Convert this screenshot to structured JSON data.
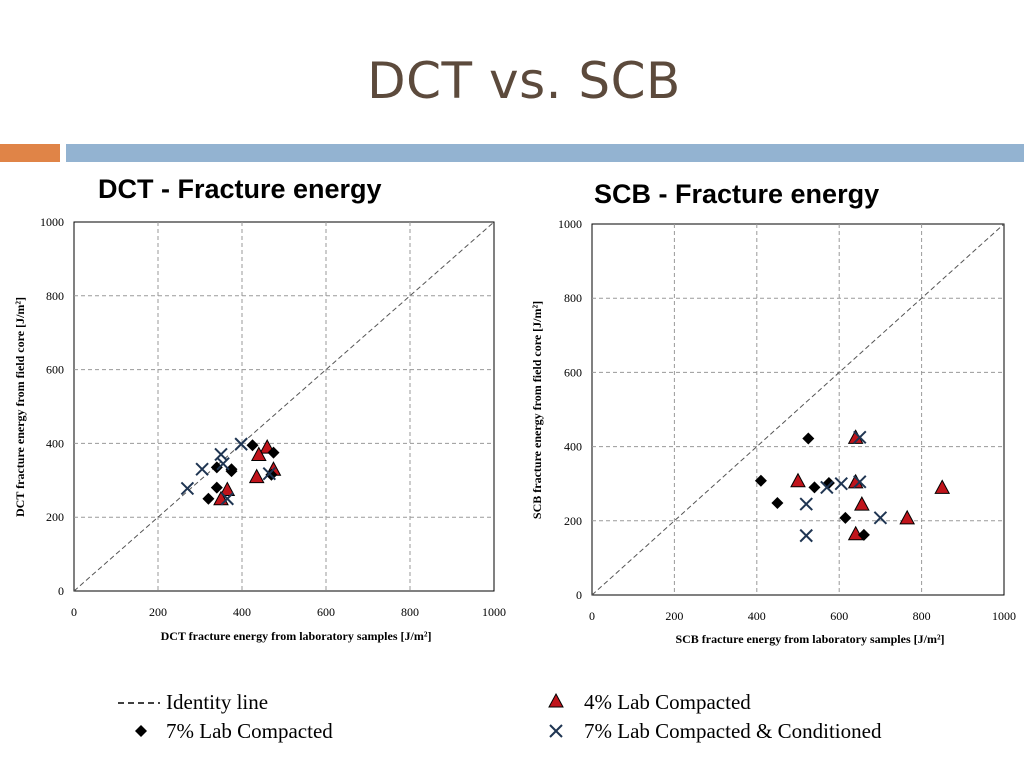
{
  "slide": {
    "title": "DCT vs. SCB",
    "accent_colors": {
      "left_bar": "#e08447",
      "right_bar": "#93b3d1",
      "title": "#5c4a3c"
    }
  },
  "legend": {
    "identity": "Identity line",
    "lab4": "4% Lab Compacted",
    "lab7": "7% Lab Compacted",
    "lab7c": "7% Lab Compacted & Conditioned"
  },
  "chart_data": [
    {
      "type": "scatter",
      "title": "DCT  -  Fracture energy",
      "xlabel": "DCT fracture energy from laboratory samples [J/m²]",
      "ylabel": "DCT fracture energy  from field core [J/m²]",
      "xlim": [
        0,
        1000
      ],
      "ylim": [
        0,
        1000
      ],
      "xticks": [
        "0",
        "200",
        "400",
        "600",
        "800",
        "1000"
      ],
      "yticks": [
        "0",
        "200",
        "400",
        "600",
        "800",
        "1000"
      ],
      "grid": true,
      "identity_line": true,
      "series": [
        {
          "key": "lab4",
          "marker": "triangle",
          "color": "#c0141b",
          "points": [
            [
              460,
              390
            ],
            [
              440,
              370
            ],
            [
              435,
              310
            ],
            [
              475,
              330
            ],
            [
              365,
              275
            ],
            [
              350,
              250
            ]
          ]
        },
        {
          "key": "lab7",
          "marker": "diamond",
          "color": "#000000",
          "points": [
            [
              425,
              395
            ],
            [
              475,
              375
            ],
            [
              340,
              335
            ],
            [
              375,
              325
            ],
            [
              470,
              315
            ],
            [
              340,
              280
            ],
            [
              320,
              250
            ],
            [
              375,
              330
            ]
          ]
        },
        {
          "key": "lab7c",
          "marker": "x",
          "color": "#1f3552",
          "points": [
            [
              270,
              278
            ],
            [
              305,
              330
            ],
            [
              350,
              370
            ],
            [
              398,
              398
            ],
            [
              355,
              345
            ],
            [
              465,
              318
            ],
            [
              365,
              250
            ]
          ]
        }
      ]
    },
    {
      "type": "scatter",
      "title": "SCB  -  Fracture energy",
      "xlabel": "SCB fracture energy from laboratory samples [J/m²]",
      "ylabel": "SCB fracture energy   from field core [J/m²]",
      "xlim": [
        0,
        1000
      ],
      "ylim": [
        0,
        1000
      ],
      "xticks": [
        "0",
        "200",
        "400",
        "600",
        "800",
        "1000"
      ],
      "yticks": [
        "0",
        "200",
        "400",
        "600",
        "800",
        "1000"
      ],
      "grid": true,
      "identity_line": true,
      "series": [
        {
          "key": "lab4",
          "marker": "triangle",
          "color": "#c0141b",
          "points": [
            [
              640,
              425
            ],
            [
              500,
              308
            ],
            [
              640,
              305
            ],
            [
              850,
              290
            ],
            [
              655,
              245
            ],
            [
              765,
              208
            ],
            [
              640,
              165
            ]
          ]
        },
        {
          "key": "lab7",
          "marker": "diamond",
          "color": "#000000",
          "points": [
            [
              525,
              422
            ],
            [
              410,
              308
            ],
            [
              450,
              248
            ],
            [
              540,
              290
            ],
            [
              575,
              302
            ],
            [
              615,
              208
            ],
            [
              660,
              162
            ]
          ]
        },
        {
          "key": "lab7c",
          "marker": "x",
          "color": "#1f3552",
          "points": [
            [
              650,
              425
            ],
            [
              650,
              305
            ],
            [
              605,
              300
            ],
            [
              570,
              290
            ],
            [
              520,
              245
            ],
            [
              700,
              208
            ],
            [
              520,
              160
            ]
          ]
        }
      ]
    }
  ]
}
